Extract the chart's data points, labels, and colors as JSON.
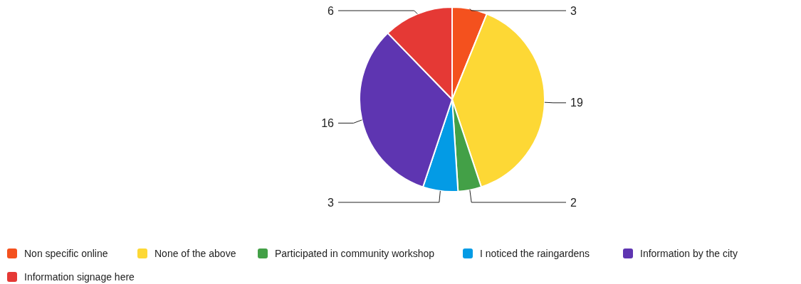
{
  "chart_data": {
    "type": "pie",
    "categories": [
      "Non specific online",
      "None of the above",
      "Participated in community workshop",
      "I noticed the raingardens",
      "Information by the city",
      "Information signage here"
    ],
    "values": [
      3,
      19,
      2,
      3,
      16,
      6
    ],
    "colors": [
      "#f4511e",
      "#fdd835",
      "#43a047",
      "#039be5",
      "#5e35b1",
      "#e53935"
    ],
    "data_labels": true,
    "legend": "bottom"
  }
}
